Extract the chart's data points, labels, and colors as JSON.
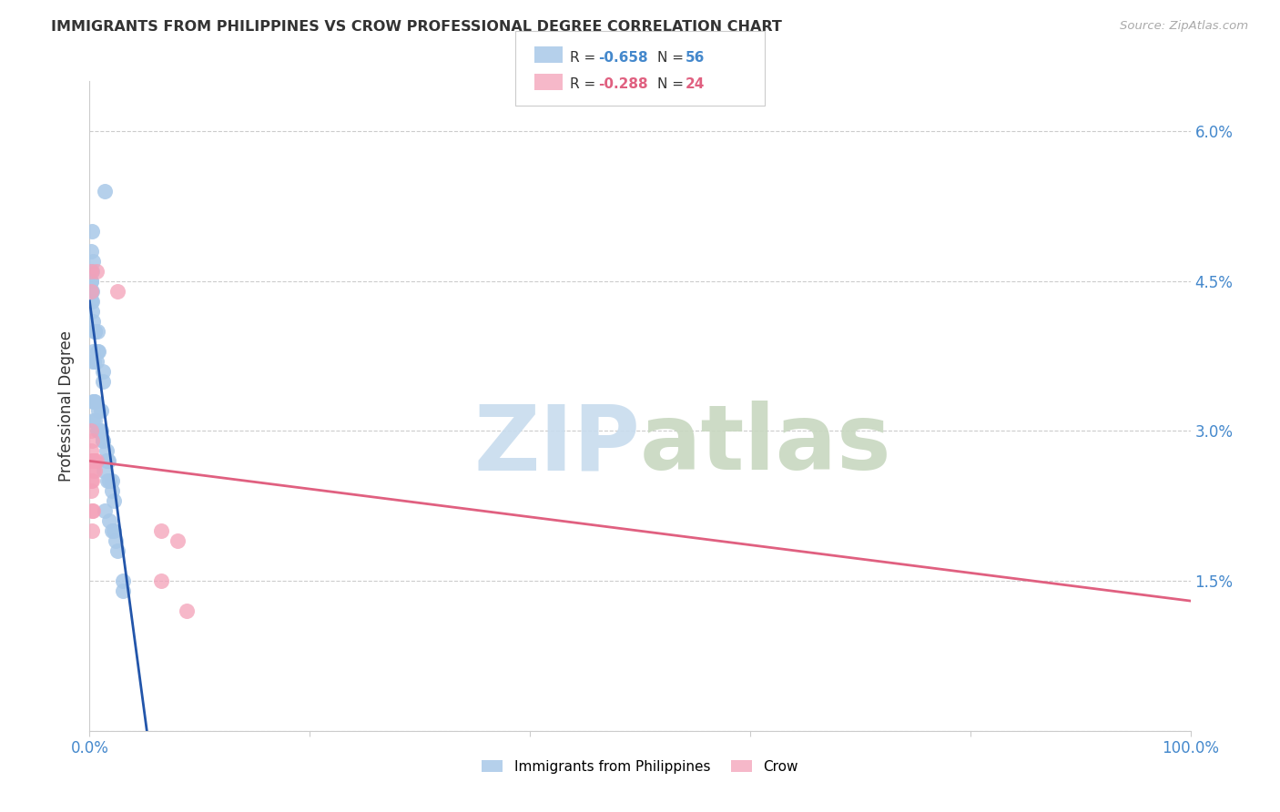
{
  "title": "IMMIGRANTS FROM PHILIPPINES VS CROW PROFESSIONAL DEGREE CORRELATION CHART",
  "source": "Source: ZipAtlas.com",
  "ylabel": "Professional Degree",
  "watermark_zip": "ZIP",
  "watermark_atlas": "atlas",
  "blue_label": "Immigrants from Philippines",
  "pink_label": "Crow",
  "legend_blue_r": "-0.658",
  "legend_blue_n": "56",
  "legend_pink_r": "-0.288",
  "legend_pink_n": "24",
  "blue_scatter_color": "#A8C8E8",
  "pink_scatter_color": "#F4A0B8",
  "blue_line_color": "#2255AA",
  "pink_line_color": "#E06080",
  "axis_label_color": "#4488CC",
  "text_color": "#333333",
  "source_color": "#aaaaaa",
  "grid_color": "#cccccc",
  "blue_points_x": [
    0.002,
    0.001,
    0.003,
    0.002,
    0.001,
    0.001,
    0.001,
    0.001,
    0.002,
    0.001,
    0.002,
    0.002,
    0.003,
    0.014,
    0.005,
    0.005,
    0.007,
    0.007,
    0.008,
    0.003,
    0.004,
    0.006,
    0.003,
    0.012,
    0.012,
    0.003,
    0.004,
    0.005,
    0.008,
    0.01,
    0.003,
    0.005,
    0.007,
    0.008,
    0.009,
    0.01,
    0.012,
    0.012,
    0.015,
    0.015,
    0.016,
    0.017,
    0.013,
    0.016,
    0.018,
    0.02,
    0.02,
    0.022,
    0.014,
    0.018,
    0.02,
    0.022,
    0.024,
    0.025,
    0.03,
    0.03
  ],
  "blue_points_y": [
    0.05,
    0.048,
    0.047,
    0.046,
    0.046,
    0.045,
    0.045,
    0.044,
    0.044,
    0.043,
    0.043,
    0.042,
    0.041,
    0.054,
    0.04,
    0.04,
    0.04,
    0.038,
    0.038,
    0.038,
    0.037,
    0.037,
    0.037,
    0.036,
    0.035,
    0.033,
    0.033,
    0.033,
    0.032,
    0.032,
    0.031,
    0.031,
    0.03,
    0.03,
    0.03,
    0.03,
    0.029,
    0.029,
    0.028,
    0.027,
    0.027,
    0.027,
    0.026,
    0.025,
    0.025,
    0.025,
    0.024,
    0.023,
    0.022,
    0.021,
    0.02,
    0.02,
    0.019,
    0.018,
    0.015,
    0.014
  ],
  "pink_points_x": [
    0.001,
    0.001,
    0.006,
    0.025,
    0.001,
    0.002,
    0.001,
    0.002,
    0.003,
    0.004,
    0.005,
    0.006,
    0.003,
    0.005,
    0.001,
    0.002,
    0.001,
    0.002,
    0.003,
    0.002,
    0.065,
    0.08,
    0.065,
    0.088
  ],
  "pink_points_y": [
    0.046,
    0.044,
    0.046,
    0.044,
    0.03,
    0.029,
    0.028,
    0.027,
    0.027,
    0.027,
    0.027,
    0.027,
    0.026,
    0.026,
    0.025,
    0.025,
    0.024,
    0.022,
    0.022,
    0.02,
    0.02,
    0.019,
    0.015,
    0.012
  ],
  "blue_trendline_x": [
    0.0,
    0.052
  ],
  "blue_trendline_y": [
    0.043,
    0.0
  ],
  "pink_trendline_x": [
    0.0,
    1.0
  ],
  "pink_trendline_y": [
    0.027,
    0.013
  ],
  "xlim": [
    0.0,
    1.0
  ],
  "ylim": [
    0.0,
    0.065
  ],
  "xticks": [
    0.0,
    0.2,
    0.4,
    0.6,
    0.8,
    1.0
  ],
  "xticklabels": [
    "0.0%",
    "",
    "",
    "",
    "",
    "100.0%"
  ],
  "yticks": [
    0.0,
    0.015,
    0.03,
    0.045,
    0.06
  ],
  "yticklabels_right": [
    "",
    "1.5%",
    "3.0%",
    "4.5%",
    "6.0%"
  ]
}
